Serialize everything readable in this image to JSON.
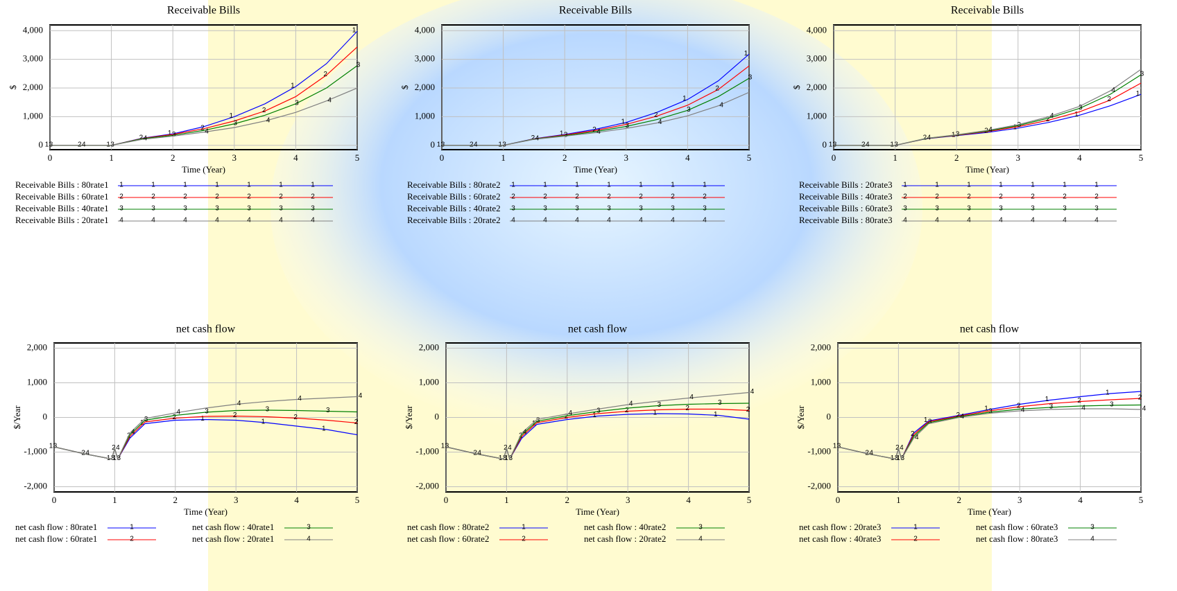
{
  "chart_data": [
    {
      "type": "line",
      "title": "Receivable Bills",
      "x_label": "Time (Year)",
      "y_label": "$",
      "grid": true,
      "x": [
        0,
        0.5,
        1,
        1.5,
        2,
        2.5,
        3,
        3.5,
        4,
        4.5,
        5
      ],
      "xlim": [
        0,
        5
      ],
      "xticks": [
        0,
        1,
        2,
        3,
        4,
        5
      ],
      "ylim": [
        -150,
        4200
      ],
      "yticks": [
        0,
        {
          "value": 1000,
          "label": "1,000"
        },
        {
          "value": 2000,
          "label": "2,000"
        },
        {
          "value": 3000,
          "label": "3,000"
        },
        {
          "value": 4000,
          "label": "4,000"
        }
      ],
      "series": [
        {
          "name": "Receivable Bills : 80rate1",
          "color": "#0000ff",
          "marker": "1",
          "values": [
            0,
            0,
            0,
            250,
            400,
            650,
            1000,
            1450,
            2050,
            2850,
            3980
          ]
        },
        {
          "name": "Receivable Bills : 60rate1",
          "color": "#ff0000",
          "marker": "2",
          "values": [
            0,
            0,
            0,
            240,
            380,
            580,
            850,
            1200,
            1700,
            2450,
            3430
          ]
        },
        {
          "name": "Receivable Bills : 40rate1",
          "color": "#008000",
          "marker": "3",
          "values": [
            0,
            0,
            0,
            230,
            350,
            520,
            750,
            1050,
            1450,
            2000,
            2780
          ]
        },
        {
          "name": "Receivable Bills : 20rate1",
          "color": "#808080",
          "marker": "4",
          "values": [
            0,
            0,
            0,
            210,
            320,
            460,
            620,
            850,
            1150,
            1550,
            2000
          ]
        }
      ]
    },
    {
      "type": "line",
      "title": "Receivable Bills",
      "x_label": "Time (Year)",
      "y_label": "$",
      "grid": true,
      "x": [
        0,
        0.5,
        1,
        1.5,
        2,
        2.5,
        3,
        3.5,
        4,
        4.5,
        5
      ],
      "xlim": [
        0,
        5
      ],
      "xticks": [
        0,
        1,
        2,
        3,
        4,
        5
      ],
      "ylim": [
        -150,
        4200
      ],
      "yticks": [
        0,
        {
          "value": 1000,
          "label": "1,000"
        },
        {
          "value": 2000,
          "label": "2,000"
        },
        {
          "value": 3000,
          "label": "3,000"
        },
        {
          "value": 4000,
          "label": "4,000"
        }
      ],
      "series": [
        {
          "name": "Receivable Bills : 80rate2",
          "color": "#0000ff",
          "marker": "1",
          "values": [
            0,
            0,
            0,
            230,
            380,
            560,
            800,
            1150,
            1600,
            2250,
            3180
          ]
        },
        {
          "name": "Receivable Bills : 60rate2",
          "color": "#ff0000",
          "marker": "2",
          "values": [
            0,
            0,
            0,
            225,
            360,
            520,
            730,
            1020,
            1400,
            1950,
            2770
          ]
        },
        {
          "name": "Receivable Bills : 40rate2",
          "color": "#008000",
          "marker": "3",
          "values": [
            0,
            0,
            0,
            220,
            340,
            480,
            660,
            900,
            1220,
            1700,
            2340
          ]
        },
        {
          "name": "Receivable Bills : 20rate2",
          "color": "#808080",
          "marker": "4",
          "values": [
            0,
            0,
            0,
            210,
            320,
            440,
            590,
            780,
            1030,
            1380,
            1850
          ]
        }
      ]
    },
    {
      "type": "line",
      "title": "Receivable Bills",
      "x_label": "Time (Year)",
      "y_label": "$",
      "grid": true,
      "x": [
        0,
        0.5,
        1,
        1.5,
        2,
        2.5,
        3,
        3.5,
        4,
        4.5,
        5
      ],
      "xlim": [
        0,
        5
      ],
      "xticks": [
        0,
        1,
        2,
        3,
        4,
        5
      ],
      "ylim": [
        -150,
        4200
      ],
      "yticks": [
        0,
        {
          "value": 1000,
          "label": "1,000"
        },
        {
          "value": 2000,
          "label": "2,000"
        },
        {
          "value": 3000,
          "label": "3,000"
        },
        {
          "value": 4000,
          "label": "4,000"
        }
      ],
      "series": [
        {
          "name": "Receivable Bills : 20rate3",
          "color": "#0000ff",
          "marker": "1",
          "values": [
            0,
            0,
            0,
            230,
            340,
            450,
            600,
            800,
            1050,
            1380,
            1780
          ]
        },
        {
          "name": "Receivable Bills : 40rate3",
          "color": "#ff0000",
          "marker": "2",
          "values": [
            0,
            0,
            0,
            235,
            350,
            480,
            650,
            880,
            1170,
            1580,
            2170
          ]
        },
        {
          "name": "Receivable Bills : 60rate3",
          "color": "#008000",
          "marker": "3",
          "values": [
            0,
            0,
            0,
            240,
            360,
            500,
            690,
            950,
            1290,
            1780,
            2460
          ]
        },
        {
          "name": "Receivable Bills : 80rate3",
          "color": "#808080",
          "marker": "4",
          "values": [
            0,
            0,
            0,
            245,
            370,
            520,
            720,
            1000,
            1360,
            1900,
            2650
          ]
        }
      ]
    },
    {
      "type": "line",
      "title": "net cash flow",
      "x_label": "Time (Year)",
      "y_label": "$/Year",
      "grid": true,
      "x": [
        0,
        0.5,
        0.95,
        1,
        1.05,
        1.25,
        1.5,
        2,
        2.5,
        3,
        3.5,
        4,
        4.5,
        5
      ],
      "xlim": [
        0,
        5
      ],
      "xticks": [
        0,
        1,
        2,
        3,
        4,
        5
      ],
      "ylim": [
        -2150,
        2150
      ],
      "yticks": [
        {
          "value": -2000,
          "label": "-2,000"
        },
        {
          "value": -1000,
          "label": "-1,000"
        },
        0,
        {
          "value": 1000,
          "label": "1,000"
        },
        {
          "value": 2000,
          "label": "2,000"
        }
      ],
      "series": [
        {
          "name": "net cash flow : 80rate1",
          "color": "#0000ff",
          "marker": "1",
          "values": [
            -850,
            -1050,
            -1200,
            -900,
            -1200,
            -600,
            -180,
            -80,
            -60,
            -80,
            -150,
            -250,
            -350,
            -500
          ]
        },
        {
          "name": "net cash flow : 60rate1",
          "color": "#ff0000",
          "marker": "2",
          "values": [
            -850,
            -1050,
            -1200,
            -900,
            -1200,
            -550,
            -130,
            -20,
            30,
            40,
            20,
            -20,
            -80,
            -160
          ]
        },
        {
          "name": "net cash flow : 40rate1",
          "color": "#008000",
          "marker": "3",
          "values": [
            -850,
            -1050,
            -1200,
            -900,
            -1200,
            -500,
            -80,
            60,
            150,
            200,
            210,
            200,
            180,
            160
          ]
        },
        {
          "name": "net cash flow : 20rate1",
          "color": "#808080",
          "marker": "4",
          "values": [
            -850,
            -1050,
            -1200,
            -900,
            -1200,
            -450,
            -30,
            130,
            270,
            380,
            460,
            520,
            560,
            600
          ]
        }
      ]
    },
    {
      "type": "line",
      "title": "net cash flow",
      "x_label": "Time (Year)",
      "y_label": "$/Year",
      "grid": true,
      "x": [
        0,
        0.5,
        0.95,
        1,
        1.05,
        1.25,
        1.5,
        2,
        2.5,
        3,
        3.5,
        4,
        4.5,
        5
      ],
      "xlim": [
        0,
        5
      ],
      "xticks": [
        0,
        1,
        2,
        3,
        4,
        5
      ],
      "ylim": [
        -2150,
        2150
      ],
      "yticks": [
        {
          "value": -2000,
          "label": "-2,000"
        },
        {
          "value": -1000,
          "label": "-1,000"
        },
        0,
        {
          "value": 1000,
          "label": "1,000"
        },
        {
          "value": 2000,
          "label": "2,000"
        }
      ],
      "series": [
        {
          "name": "net cash flow : 80rate2",
          "color": "#0000ff",
          "marker": "1",
          "values": [
            -850,
            -1050,
            -1200,
            -900,
            -1200,
            -600,
            -200,
            -60,
            40,
            90,
            110,
            100,
            60,
            -50
          ]
        },
        {
          "name": "net cash flow : 60rate2",
          "color": "#ff0000",
          "marker": "2",
          "values": [
            -850,
            -1050,
            -1200,
            -900,
            -1200,
            -550,
            -150,
            0,
            110,
            180,
            220,
            240,
            240,
            200
          ]
        },
        {
          "name": "net cash flow : 40rate2",
          "color": "#008000",
          "marker": "3",
          "values": [
            -850,
            -1050,
            -1200,
            -900,
            -1200,
            -500,
            -110,
            50,
            170,
            270,
            340,
            380,
            400,
            410
          ]
        },
        {
          "name": "net cash flow : 20rate2",
          "color": "#808080",
          "marker": "4",
          "values": [
            -850,
            -1050,
            -1200,
            -900,
            -1200,
            -450,
            -60,
            100,
            240,
            370,
            470,
            560,
            640,
            720
          ]
        }
      ]
    },
    {
      "type": "line",
      "title": "net cash flow",
      "x_label": "Time (Year)",
      "y_label": "$/Year",
      "grid": true,
      "x": [
        0,
        0.5,
        0.95,
        1,
        1.05,
        1.25,
        1.5,
        2,
        2.5,
        3,
        3.5,
        4,
        4.5,
        5
      ],
      "xlim": [
        0,
        5
      ],
      "xticks": [
        0,
        1,
        2,
        3,
        4,
        5
      ],
      "ylim": [
        -2150,
        2150
      ],
      "yticks": [
        {
          "value": -2000,
          "label": "-2,000"
        },
        {
          "value": -1000,
          "label": "-1,000"
        },
        0,
        {
          "value": 1000,
          "label": "1,000"
        },
        {
          "value": 2000,
          "label": "2,000"
        }
      ],
      "series": [
        {
          "name": "net cash flow : 20rate3",
          "color": "#0000ff",
          "marker": "1",
          "values": [
            -850,
            -1050,
            -1200,
            -900,
            -1200,
            -450,
            -100,
            60,
            230,
            380,
            500,
            600,
            690,
            750
          ]
        },
        {
          "name": "net cash flow : 40rate3",
          "color": "#ff0000",
          "marker": "2",
          "values": [
            -850,
            -1050,
            -1200,
            -900,
            -1200,
            -500,
            -120,
            40,
            190,
            310,
            400,
            460,
            510,
            550
          ]
        },
        {
          "name": "net cash flow : 60rate3",
          "color": "#008000",
          "marker": "3",
          "values": [
            -850,
            -1050,
            -1200,
            -900,
            -1200,
            -550,
            -150,
            20,
            150,
            240,
            290,
            330,
            350,
            360
          ]
        },
        {
          "name": "net cash flow : 80rate3",
          "color": "#808080",
          "marker": "4",
          "values": [
            -850,
            -1050,
            -1200,
            -900,
            -1200,
            -600,
            -180,
            0,
            120,
            190,
            230,
            250,
            250,
            230
          ]
        }
      ]
    }
  ]
}
